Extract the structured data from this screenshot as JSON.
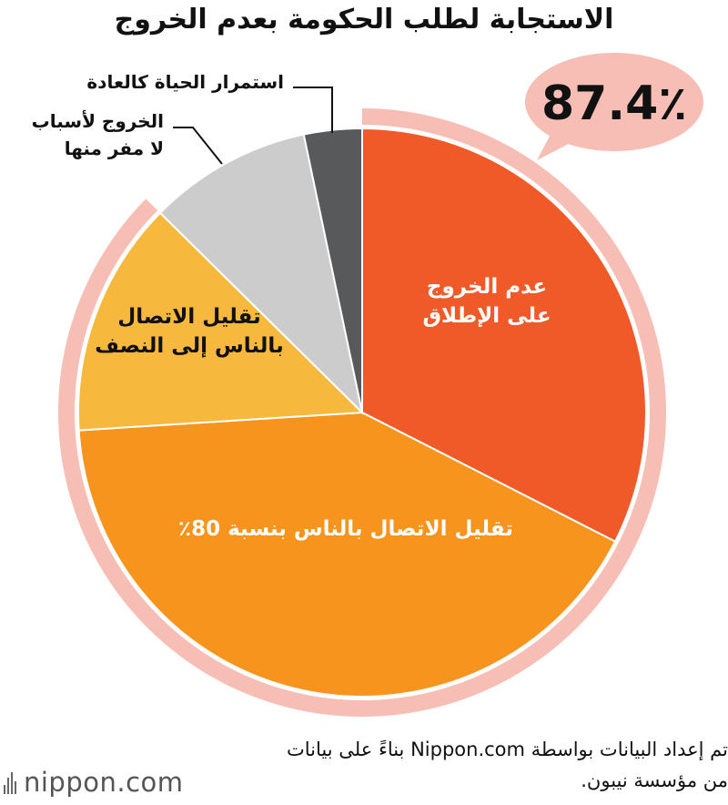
{
  "title": "الاستجابة لطلب الحكومة بعدم الخروج",
  "highlight": {
    "value_text": "87.4٪",
    "value": 87.4,
    "color": "#f6beb5"
  },
  "chart_data": {
    "type": "pie",
    "start_angle_deg": 0,
    "direction": "clockwise",
    "slices": [
      {
        "label": "عدم الخروج على الإطلاق",
        "lines": [
          "عدم الخروج",
          "على الإطلاق"
        ],
        "value": 32.5,
        "color": "#f05a28",
        "label_style": "inside"
      },
      {
        "label": "تقليل الاتصال بالناس بنسبة 80٪",
        "lines": [
          "تقليل الاتصال بالناس بنسبة 80٪"
        ],
        "value": 41.5,
        "color": "#f7941d",
        "label_style": "inside"
      },
      {
        "label": "تقليل الاتصال بالناس إلى النصف",
        "lines": [
          "تقليل الاتصال",
          "بالناس إلى النصف"
        ],
        "value": 13.4,
        "color": "#f6b83d",
        "label_style": "inside-dark"
      },
      {
        "label": "الخروج لأسباب لا مفر منها",
        "lines": [
          "الخروج لأسباب",
          "لا مفر منها"
        ],
        "value": 9.3,
        "color": "#cccccc",
        "label_style": "callout"
      },
      {
        "label": "استمرار الحياة كالعادة",
        "lines": [
          "استمرار الحياة كالعادة"
        ],
        "value": 3.3,
        "color": "#58595b",
        "label_style": "callout"
      }
    ]
  },
  "source": {
    "line1": "تم إعداد البيانات بواسطة Nippon.com بناءً على بيانات",
    "line2": "من مؤسسة نيبون."
  },
  "logo": {
    "text": "nippon.com"
  }
}
